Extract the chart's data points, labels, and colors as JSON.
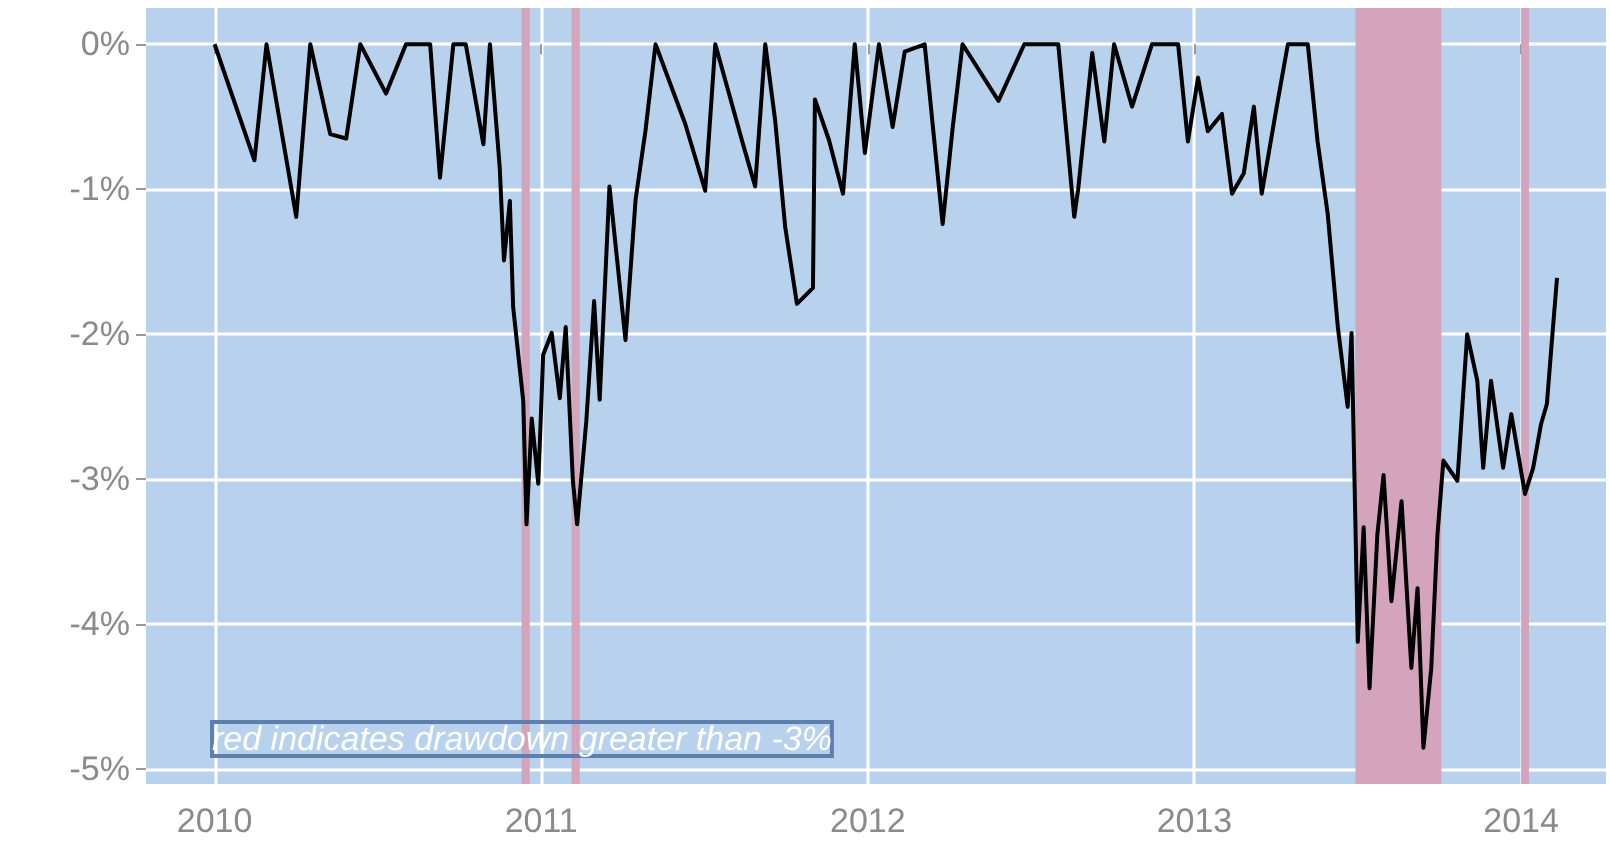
{
  "chart_data": {
    "type": "line",
    "annotations": [
      "red indicates drawdown greater than -3%"
    ],
    "xlim": [
      2009.79,
      2014.26
    ],
    "xticks": [
      2010,
      2011,
      2012,
      2013,
      2014
    ],
    "ylim": [
      -5.1,
      0.25
    ],
    "yticks": [
      {
        "value": -5,
        "label": "-5%"
      },
      {
        "value": -4,
        "label": "-4%"
      },
      {
        "value": -3,
        "label": "-3%"
      },
      {
        "value": -2,
        "label": "-2%"
      },
      {
        "value": -1,
        "label": "-1%"
      },
      {
        "value": 0,
        "label": "0%"
      }
    ],
    "grid": true,
    "marker": "none",
    "line_style": "solid",
    "bands": [
      {
        "axis": "x",
        "from": 2010.94,
        "to": 2010.965,
        "color": "#d3a4bc"
      },
      {
        "axis": "x",
        "from": 2011.093,
        "to": 2011.118,
        "color": "#d3a4bc"
      },
      {
        "axis": "x",
        "from": 2013.493,
        "to": 2013.756,
        "color": "#d3a4bc"
      },
      {
        "axis": "x",
        "from": 2014.0,
        "to": 2014.024,
        "color": "#d3a4bc"
      }
    ],
    "series": [
      {
        "color": "#000000",
        "x": [
          2010.0,
          2010.122,
          2010.159,
          2010.25,
          2010.293,
          2010.354,
          2010.403,
          2010.446,
          2010.525,
          2010.586,
          2010.66,
          2010.69,
          2010.731,
          2010.769,
          2010.823,
          2010.843,
          2010.873,
          2010.886,
          2010.904,
          2010.914,
          2010.945,
          2010.955,
          2010.971,
          2010.991,
          2011.006,
          2011.032,
          2011.057,
          2011.075,
          2011.097,
          2011.11,
          2011.138,
          2011.162,
          2011.179,
          2011.209,
          2011.258,
          2011.289,
          2011.319,
          2011.35,
          2011.441,
          2011.502,
          2011.533,
          2011.618,
          2011.655,
          2011.686,
          2011.716,
          2011.747,
          2011.783,
          2011.832,
          2011.838,
          2011.881,
          2011.924,
          2011.96,
          2011.991,
          2012.034,
          2012.076,
          2012.113,
          2012.174,
          2012.229,
          2012.26,
          2012.29,
          2012.4,
          2012.479,
          2012.583,
          2012.632,
          2012.644,
          2012.687,
          2012.724,
          2012.754,
          2012.809,
          2012.87,
          2012.95,
          2012.98,
          2013.011,
          2013.041,
          2013.084,
          2013.115,
          2013.151,
          2013.182,
          2013.206,
          2013.255,
          2013.286,
          2013.347,
          2013.377,
          2013.408,
          2013.439,
          2013.469,
          2013.481,
          2013.5,
          2013.518,
          2013.536,
          2013.56,
          2013.579,
          2013.603,
          2013.634,
          2013.664,
          2013.683,
          2013.701,
          2013.725,
          2013.744,
          2013.762,
          2013.805,
          2013.835,
          2013.866,
          2013.884,
          2013.908,
          2013.945,
          2013.97,
          2014.012,
          2014.037,
          2014.061,
          2014.079,
          2014.092,
          2014.11
        ],
        "values": [
          0,
          -0.8,
          0,
          -1.19,
          0,
          -0.62,
          -0.65,
          0,
          -0.34,
          0,
          0,
          -0.92,
          0,
          0,
          -0.69,
          0,
          -0.85,
          -1.49,
          -1.08,
          -1.81,
          -2.46,
          -3.31,
          -2.58,
          -3.03,
          -2.14,
          -1.99,
          -2.44,
          -1.95,
          -3.01,
          -3.31,
          -2.6,
          -1.77,
          -2.45,
          -0.98,
          -2.04,
          -1.07,
          -0.6,
          0,
          -0.55,
          -1.01,
          0,
          -0.69,
          -0.98,
          0,
          -0.52,
          -1.26,
          -1.79,
          -1.68,
          -0.38,
          -0.66,
          -1.03,
          0,
          -0.75,
          0,
          -0.57,
          -0.05,
          0,
          -1.24,
          -0.57,
          0,
          -0.39,
          0,
          0,
          -1.19,
          -1.0,
          -0.06,
          -0.67,
          0,
          -0.43,
          0,
          0,
          -0.67,
          -0.23,
          -0.6,
          -0.48,
          -1.03,
          -0.89,
          -0.43,
          -1.03,
          -0.39,
          0,
          0,
          -0.67,
          -1.17,
          -1.95,
          -2.5,
          -1.99,
          -4.12,
          -3.33,
          -4.44,
          -3.38,
          -2.97,
          -3.84,
          -3.15,
          -4.3,
          -3.75,
          -4.85,
          -4.3,
          -3.38,
          -2.87,
          -3.01,
          -2.0,
          -2.32,
          -2.92,
          -2.32,
          -2.92,
          -2.55,
          -3.1,
          -2.92,
          -2.62,
          -2.48,
          -2.11,
          -1.61
        ]
      }
    ]
  }
}
